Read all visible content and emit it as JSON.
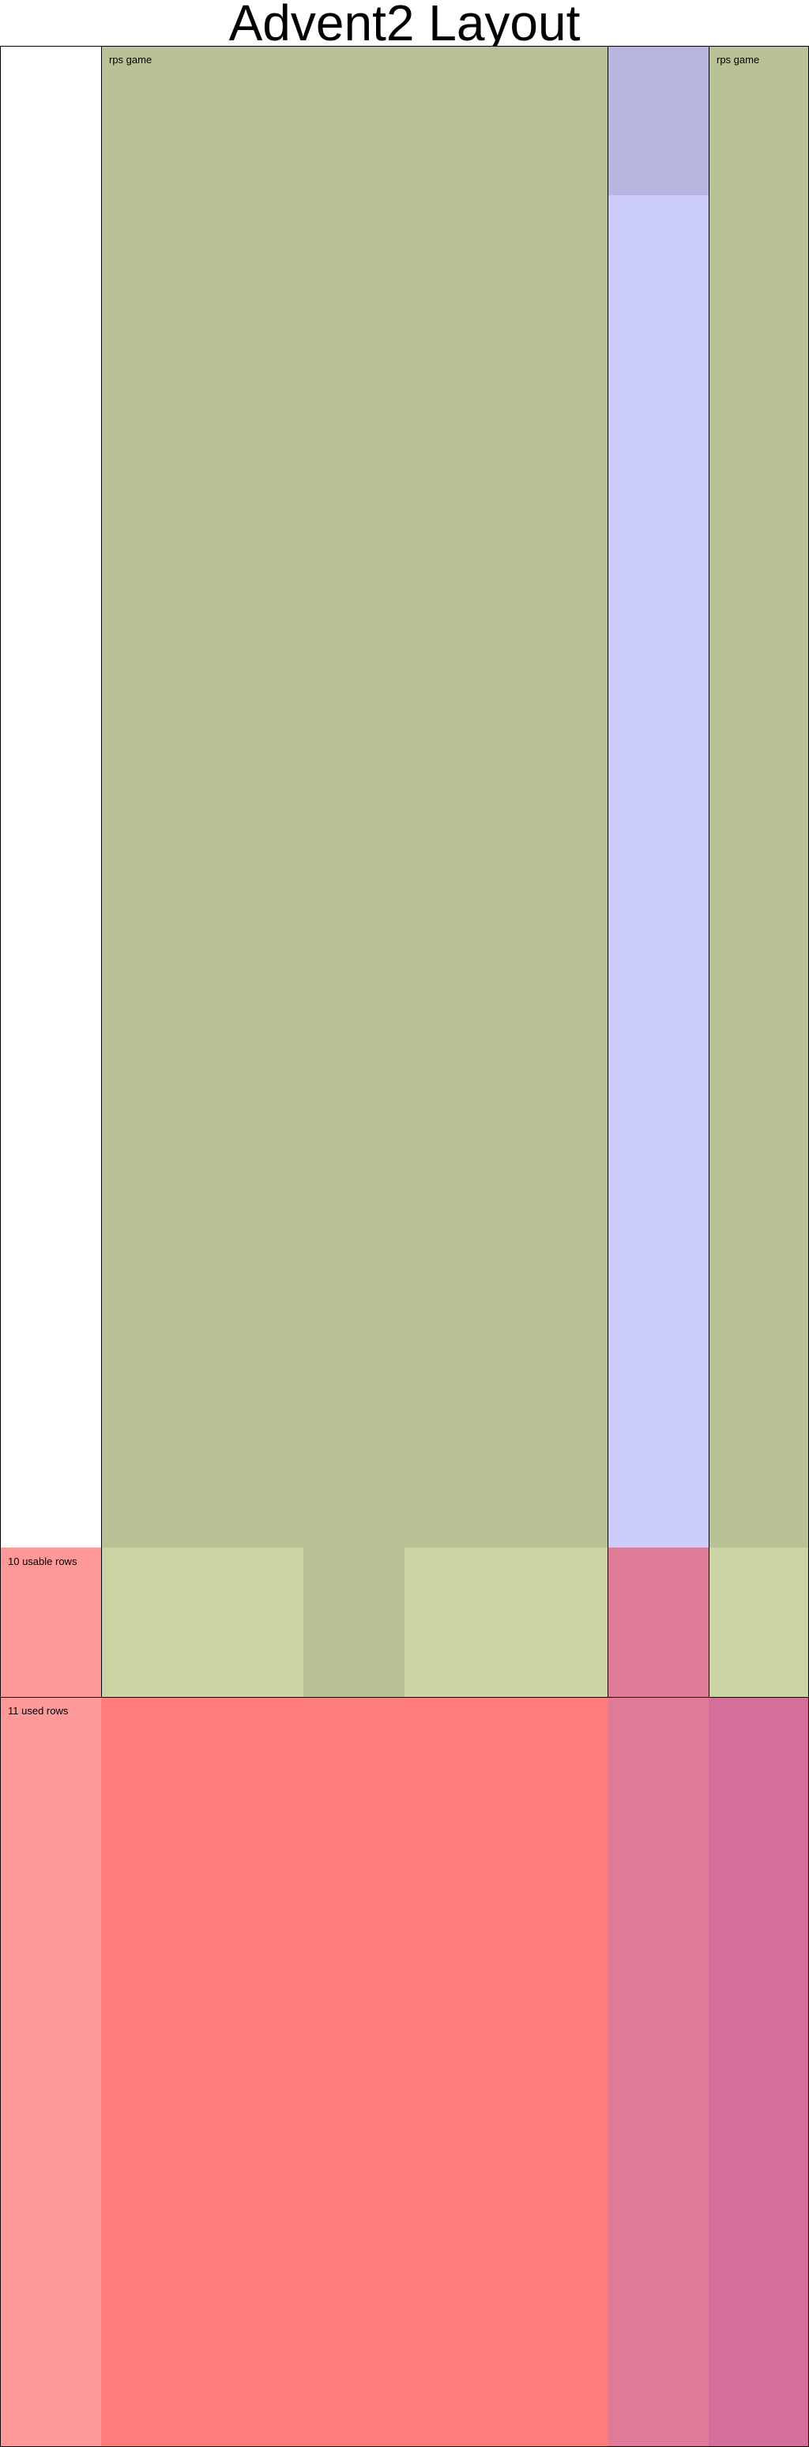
{
  "diagram": {
    "title": "Advent2 Layout",
    "labels": {
      "rps_game_main": "rps game",
      "rps_game_right": "rps game",
      "usable_rows": "10 usable rows",
      "used_rows": "11 used rows"
    },
    "colors": {
      "white": "#ffffff",
      "rps_green": "#b9c196",
      "usable_green_light": "#ccd4a4",
      "lavender_dark": "#b6b6e1",
      "lavender_light": "#ccccfa",
      "pink_red_light": "#ff9898",
      "red_main": "#ff7c7c",
      "rose": "#df7a99",
      "magenta_rose": "#d46f9c",
      "outline": "#000000"
    }
  }
}
